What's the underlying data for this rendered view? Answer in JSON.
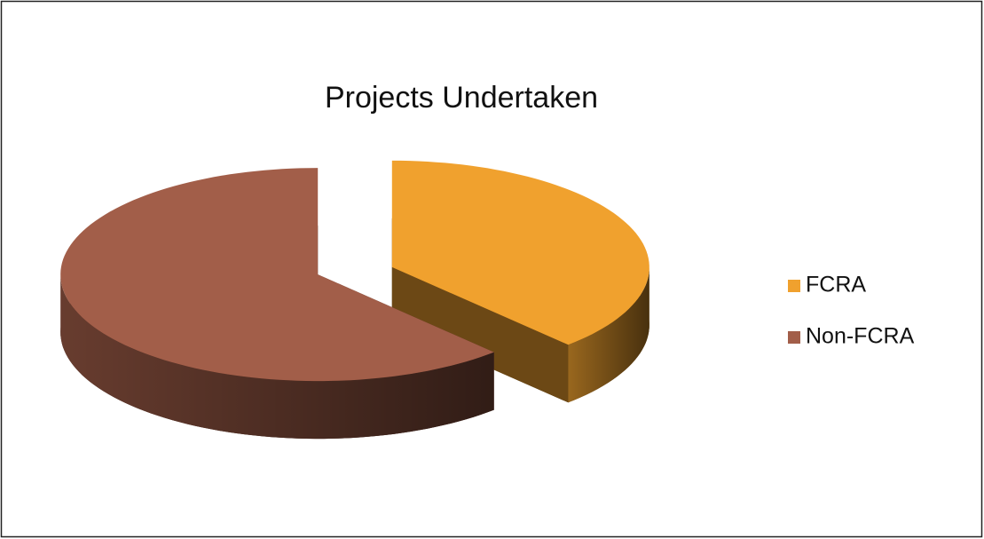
{
  "chart_data": {
    "type": "pie",
    "title": "Projects Undertaken",
    "categories": [
      "FCRA",
      "Non-FCRA"
    ],
    "values": [
      38,
      62
    ],
    "colors": [
      "#f0a12e",
      "#a25e49"
    ],
    "legend": "right",
    "exploded": true,
    "three_d": true
  }
}
